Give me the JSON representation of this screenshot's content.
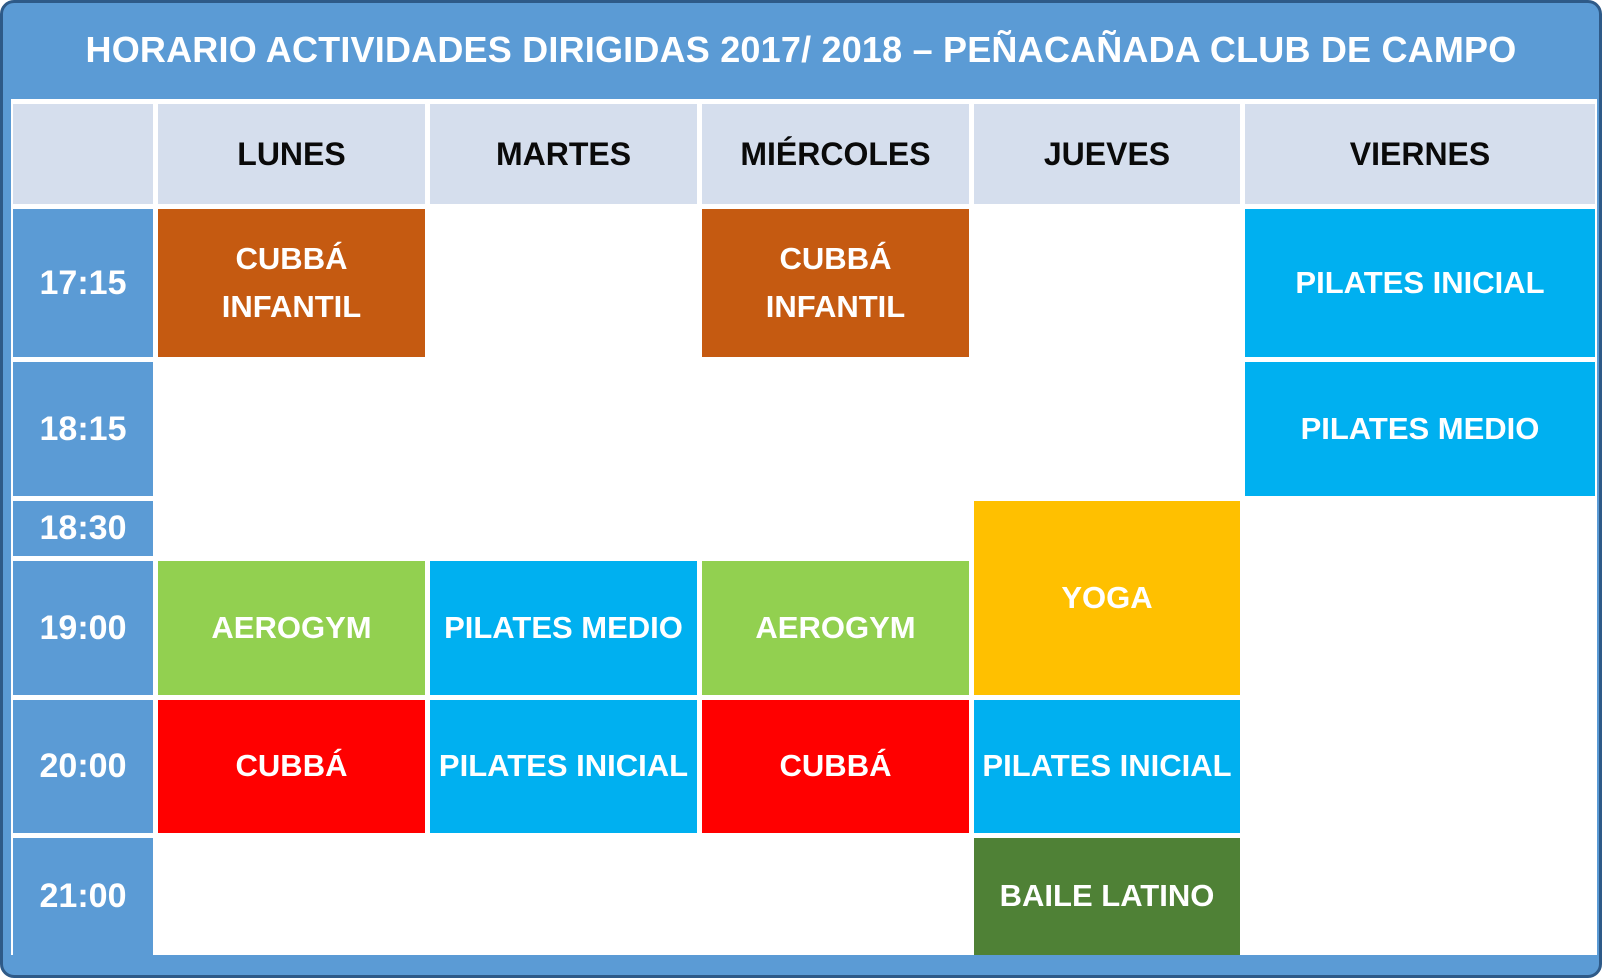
{
  "title": "HORARIO ACTIVIDADES DIRIGIDAS 2017/ 2018 – PEÑACAÑADA CLUB DE CAMPO",
  "header": {
    "corner": "",
    "days": [
      {
        "key": "lunes",
        "label": "LUNES"
      },
      {
        "key": "martes",
        "label": "MARTES"
      },
      {
        "key": "miercoles",
        "label": "MIÉRCOLES"
      },
      {
        "key": "jueves",
        "label": "JUEVES"
      },
      {
        "key": "viernes",
        "label": "VIERNES"
      }
    ]
  },
  "times": [
    {
      "key": "1715",
      "label": "17:15"
    },
    {
      "key": "1815",
      "label": "18:15"
    },
    {
      "key": "1830",
      "label": "18:30"
    },
    {
      "key": "1900",
      "label": "19:00"
    },
    {
      "key": "2000",
      "label": "20:00"
    },
    {
      "key": "2100",
      "label": "21:00"
    }
  ],
  "activities": [
    {
      "name": "cubba-infantil-lunes-1715",
      "label": "CUBBÁ\nINFANTIL",
      "color": "cubba_infantil",
      "row": 1,
      "col": 1,
      "rowspan": 1
    },
    {
      "name": "cubba-infantil-miercoles-1715",
      "label": "CUBBÁ\nINFANTIL",
      "color": "cubba_infantil",
      "row": 1,
      "col": 3,
      "rowspan": 1
    },
    {
      "name": "pilates-inicial-viernes-1715",
      "label": "PILATES INICIAL",
      "color": "pilates",
      "row": 1,
      "col": 5,
      "rowspan": 1
    },
    {
      "name": "pilates-medio-viernes-1815",
      "label": "PILATES MEDIO",
      "color": "pilates",
      "row": 2,
      "col": 5,
      "rowspan": 1
    },
    {
      "name": "yoga-jueves-1830",
      "label": "YOGA",
      "color": "yoga",
      "row": 3,
      "col": 4,
      "rowspan": 2
    },
    {
      "name": "aerogym-lunes-1900",
      "label": "AEROGYM",
      "color": "aerogym",
      "row": 4,
      "col": 1,
      "rowspan": 1
    },
    {
      "name": "pilates-medio-martes-1900",
      "label": "PILATES MEDIO",
      "color": "pilates",
      "row": 4,
      "col": 2,
      "rowspan": 1
    },
    {
      "name": "aerogym-miercoles-1900",
      "label": "AEROGYM",
      "color": "aerogym",
      "row": 4,
      "col": 3,
      "rowspan": 1
    },
    {
      "name": "cubba-lunes-2000",
      "label": "CUBBÁ",
      "color": "cubba",
      "row": 5,
      "col": 1,
      "rowspan": 1
    },
    {
      "name": "pilates-inicial-martes-2000",
      "label": "PILATES INICIAL",
      "color": "pilates",
      "row": 5,
      "col": 2,
      "rowspan": 1
    },
    {
      "name": "cubba-miercoles-2000",
      "label": "CUBBÁ",
      "color": "cubba",
      "row": 5,
      "col": 3,
      "rowspan": 1
    },
    {
      "name": "pilates-inicial-jueves-2000",
      "label": "PILATES INICIAL",
      "color": "pilates",
      "row": 5,
      "col": 4,
      "rowspan": 1
    },
    {
      "name": "baile-latino-jueves-2100",
      "label": "BAILE LATINO",
      "color": "baile_latino",
      "row": 6,
      "col": 4,
      "rowspan": 1
    }
  ],
  "colors": {
    "frame_blue": "#5B9BD5",
    "frame_edge": "#2E5A88",
    "time_blue": "#5B9BD5",
    "header_bg": "#D5DEED",
    "cubba_infantil": "#C55A11",
    "pilates": "#00B0F0",
    "aerogym": "#92D050",
    "yoga": "#FFC000",
    "cubba": "#FF0000",
    "baile_latino": "#4F8136",
    "empty": "#FFFFFF"
  }
}
